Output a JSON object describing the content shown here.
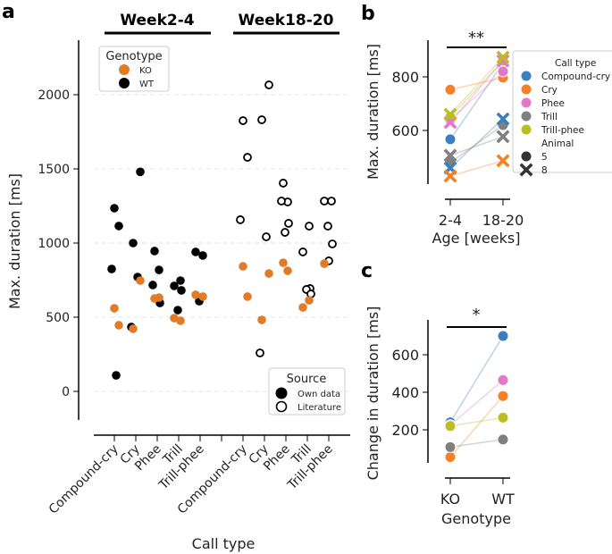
{
  "panels": {
    "a": "a",
    "b": "b",
    "c": "c"
  },
  "colors": {
    "KO": "#e07b28",
    "WT": "#000000",
    "Compound-cry": "#3a7fc0",
    "Cry": "#f58025",
    "Phee": "#e478c8",
    "Trill": "#808080",
    "Trill-phee": "#bcbd22"
  },
  "chart_data": [
    {
      "type": "scatter",
      "panel": "a",
      "groups": [
        "Week2-4",
        "Week18-20"
      ],
      "categories": [
        "Compound-cry",
        "Cry",
        "Phee",
        "Trill",
        "Trill-phee"
      ],
      "xlabel": "Call type",
      "ylabel": "Max. duration [ms]",
      "yticks": [
        0,
        500,
        1000,
        1500,
        2000
      ],
      "ylim": [
        -300,
        2370
      ],
      "grid": "horizontal dashed",
      "legend_genotype": {
        "title": "Genotype",
        "entries": [
          "KO",
          "WT"
        ],
        "placement": "top-left"
      },
      "legend_source": {
        "title": "Source",
        "entries": [
          "Own data",
          "Literature"
        ],
        "placement": "bottom-right"
      },
      "series": [
        {
          "group": "Week2-4",
          "genotype": "WT",
          "source": "Own data",
          "points": {
            "Compound-cry": [
              1235,
              1115,
              825,
              108
            ],
            "Cry": [
              1480,
              1000,
              771,
              434
            ],
            "Phee": [
              946,
              819,
              717,
              596
            ],
            "Trill": [
              747,
              711,
              681,
              548
            ],
            "Trill-phee": [
              940,
              916,
              608
            ]
          }
        },
        {
          "group": "Week2-4",
          "genotype": "KO",
          "source": "Own data",
          "points": {
            "Compound-cry": [
              560,
              446
            ],
            "Cry": [
              747,
              422
            ],
            "Phee": [
              626,
              632
            ],
            "Trill": [
              476,
              494
            ],
            "Trill-phee": [
              651,
              639
            ]
          }
        },
        {
          "group": "Week18-20",
          "genotype": "WT",
          "source": "Literature",
          "points": {
            "Compound-cry": [
              1825,
              1578,
              1157
            ],
            "Cry": [
              2066,
              1831,
              1042,
              259
            ],
            "Phee": [
              1404,
              1277,
              1283,
              1133,
              1072
            ],
            "Trill": [
              1114,
              940,
              693,
              687,
              657
            ],
            "Trill-phee": [
              1283,
              1283,
              1114,
              994,
              880
            ]
          }
        },
        {
          "group": "Week18-20",
          "genotype": "KO",
          "source": "Own data",
          "points": {
            "Compound-cry": [
              843,
              639
            ],
            "Cry": [
              795,
              482
            ],
            "Phee": [
              867,
              813
            ],
            "Trill": [
              614,
              566
            ],
            "Trill-phee": [
              861
            ]
          }
        }
      ]
    },
    {
      "type": "line",
      "panel": "b",
      "categories": [
        "2-4",
        "18-20"
      ],
      "xlabel": "Age [weeks]",
      "ylabel": "Max. duration [ms]",
      "yticks": [
        600,
        800
      ],
      "ylim": [
        400,
        937
      ],
      "significance": "**",
      "legend": {
        "title_hue": "Call type",
        "title_style": "Animal",
        "placement": "right"
      },
      "animals": [
        "5",
        "8"
      ],
      "series": [
        {
          "call_type": "Compound-cry",
          "animal": "5",
          "values": [
            567,
            850
          ]
        },
        {
          "call_type": "Cry",
          "animal": "5",
          "values": [
            752,
            797
          ]
        },
        {
          "call_type": "Phee",
          "animal": "5",
          "values": [
            640,
            820
          ]
        },
        {
          "call_type": "Trill",
          "animal": "5",
          "values": [
            480,
            620
          ]
        },
        {
          "call_type": "Trill-phee",
          "animal": "5",
          "values": [
            650,
            860
          ]
        },
        {
          "call_type": "Compound-cry",
          "animal": "8",
          "values": [
            460,
            643
          ]
        },
        {
          "call_type": "Cry",
          "animal": "8",
          "values": [
            430,
            487
          ]
        },
        {
          "call_type": "Phee",
          "animal": "8",
          "values": [
            630,
            860
          ]
        },
        {
          "call_type": "Trill",
          "animal": "8",
          "values": [
            507,
            577
          ]
        },
        {
          "call_type": "Trill-phee",
          "animal": "8",
          "values": [
            660,
            873
          ]
        }
      ]
    },
    {
      "type": "line",
      "panel": "c",
      "categories": [
        "KO",
        "WT"
      ],
      "xlabel": "Genotype",
      "ylabel": "Change in duration [ms]",
      "yticks": [
        200,
        400,
        600
      ],
      "ylim": [
        24,
        786
      ],
      "significance": "*",
      "series": [
        {
          "call_type": "Compound-cry",
          "values": [
            240,
            700
          ]
        },
        {
          "call_type": "Phee",
          "values": [
            225,
            465
          ]
        },
        {
          "call_type": "Cry",
          "values": [
            55,
            380
          ]
        },
        {
          "call_type": "Trill-phee",
          "values": [
            220,
            265
          ]
        },
        {
          "call_type": "Trill",
          "values": [
            108,
            148
          ]
        }
      ]
    }
  ]
}
